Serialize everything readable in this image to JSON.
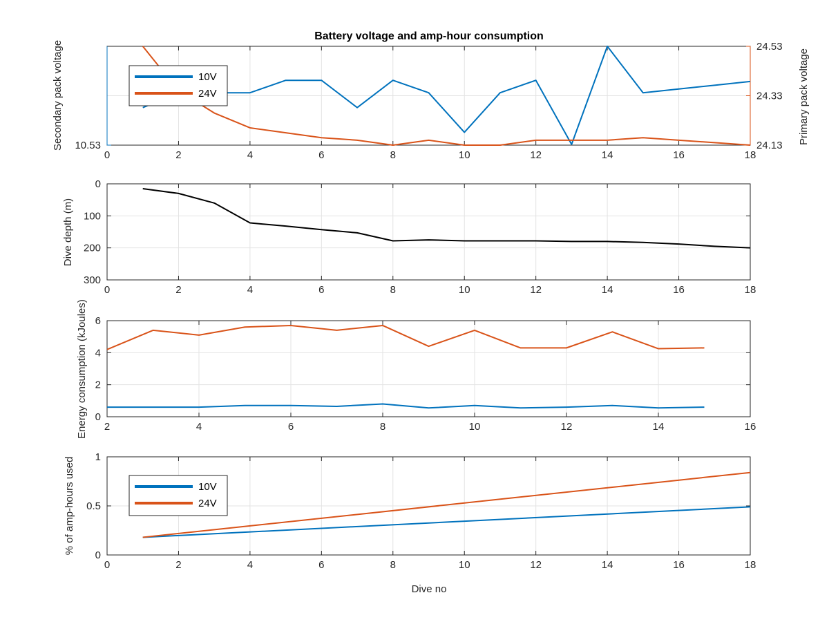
{
  "chart_data": [
    {
      "type": "line",
      "title": "Battery voltage and amp-hour consumption",
      "xlabel": "",
      "ylabel": "Secondary pack voltage",
      "ylabel_right": "Primary pack voltage",
      "xlim": [
        0,
        18
      ],
      "x_ticks": [
        "0",
        "2",
        "4",
        "6",
        "8",
        "10",
        "12",
        "14",
        "16",
        "18"
      ],
      "y_left": {
        "lim": [
          10.53,
          10.58
        ],
        "ticks": [
          "10.53"
        ],
        "tick_values": [
          10.53
        ],
        "color": "#0072BD"
      },
      "y_right": {
        "lim": [
          24.13,
          24.53
        ],
        "ticks": [
          "24.13",
          "24.33",
          "24.53"
        ],
        "tick_values": [
          24.13,
          24.33,
          24.53
        ],
        "color": "#D95319"
      },
      "grid": true,
      "legend": {
        "placement": "top-left",
        "entries": [
          "10V",
          "24V"
        ]
      },
      "series": [
        {
          "name": "10V",
          "axis": "left",
          "color": "#0072BD",
          "x": [
            1,
            2,
            3,
            4,
            5,
            6,
            7,
            8,
            9,
            10,
            11,
            12,
            13,
            14,
            15,
            16,
            17,
            18
          ],
          "values": [
            10.549,
            10.5565,
            10.5565,
            10.5565,
            10.5628,
            10.5628,
            10.549,
            10.5628,
            10.5565,
            10.5365,
            10.5565,
            10.5628,
            10.5304,
            10.58,
            10.5565,
            10.5584,
            10.5603,
            10.5622
          ]
        },
        {
          "name": "24V",
          "axis": "right",
          "color": "#D95319",
          "x": [
            1,
            2,
            3,
            4,
            5,
            6,
            7,
            8,
            9,
            10,
            11,
            12,
            13,
            14,
            15,
            16,
            17,
            18
          ],
          "values": [
            24.53,
            24.35,
            24.26,
            24.2,
            24.18,
            24.16,
            24.15,
            24.13,
            24.15,
            24.13,
            24.13,
            24.15,
            24.15,
            24.15,
            24.16,
            24.15,
            24.14,
            24.13
          ]
        }
      ]
    },
    {
      "type": "line",
      "title": "",
      "xlabel": "",
      "ylabel": "Dive depth (m)",
      "xlim": [
        0,
        18
      ],
      "ylim": [
        0,
        300
      ],
      "y_reversed": true,
      "x_ticks": [
        "0",
        "2",
        "4",
        "6",
        "8",
        "10",
        "12",
        "14",
        "16",
        "18"
      ],
      "y_ticks": [
        "0",
        "100",
        "200",
        "300"
      ],
      "y_tick_values": [
        0,
        100,
        200,
        300
      ],
      "grid": true,
      "series": [
        {
          "color": "#000000",
          "x": [
            1,
            2,
            3,
            4,
            5,
            6,
            7,
            8,
            9,
            10,
            11,
            12,
            13,
            14,
            15,
            16,
            17,
            18
          ],
          "values": [
            15,
            30,
            60,
            122,
            132,
            143,
            153,
            178,
            175,
            178,
            178,
            178,
            180,
            180,
            183,
            188,
            195,
            200
          ]
        }
      ]
    },
    {
      "type": "line",
      "title": "",
      "xlabel": "",
      "ylabel": "Energy consumption (kJoules)",
      "xlim": [
        2,
        16
      ],
      "ylim": [
        0,
        6
      ],
      "x_ticks": [
        "2",
        "4",
        "6",
        "8",
        "10",
        "12",
        "14",
        "16"
      ],
      "y_ticks": [
        "0",
        "2",
        "4",
        "6"
      ],
      "y_tick_values": [
        0,
        2,
        4,
        6
      ],
      "grid": true,
      "series": [
        {
          "color": "#D95319",
          "x": [
            2,
            3,
            4,
            5,
            6,
            7,
            8,
            9,
            10,
            11,
            12,
            13,
            14,
            15
          ],
          "values": [
            4.2,
            5.4,
            5.1,
            5.6,
            5.7,
            5.4,
            5.7,
            4.4,
            5.4,
            4.3,
            4.3,
            5.3,
            4.25,
            4.3
          ]
        },
        {
          "color": "#0072BD",
          "x": [
            2,
            3,
            4,
            5,
            6,
            7,
            8,
            9,
            10,
            11,
            12,
            13,
            14,
            15
          ],
          "values": [
            0.6,
            0.6,
            0.6,
            0.7,
            0.7,
            0.65,
            0.8,
            0.55,
            0.7,
            0.55,
            0.6,
            0.7,
            0.55,
            0.6
          ]
        }
      ]
    },
    {
      "type": "line",
      "title": "",
      "xlabel": "Dive no",
      "ylabel": "% of amp-hours used",
      "xlim": [
        0,
        18
      ],
      "ylim": [
        0,
        1
      ],
      "x_ticks": [
        "0",
        "2",
        "4",
        "6",
        "8",
        "10",
        "12",
        "14",
        "16",
        "18"
      ],
      "y_ticks": [
        "0",
        "0.5",
        "1"
      ],
      "y_tick_values": [
        0,
        0.5,
        1
      ],
      "grid": true,
      "legend": {
        "placement": "top-left",
        "entries": [
          "10V",
          "24V"
        ]
      },
      "series": [
        {
          "name": "10V",
          "color": "#0072BD",
          "x": [
            1,
            18
          ],
          "values": [
            0.18,
            0.49
          ]
        },
        {
          "name": "24V",
          "color": "#D95319",
          "x": [
            1,
            18
          ],
          "values": [
            0.18,
            0.84
          ]
        }
      ]
    }
  ]
}
